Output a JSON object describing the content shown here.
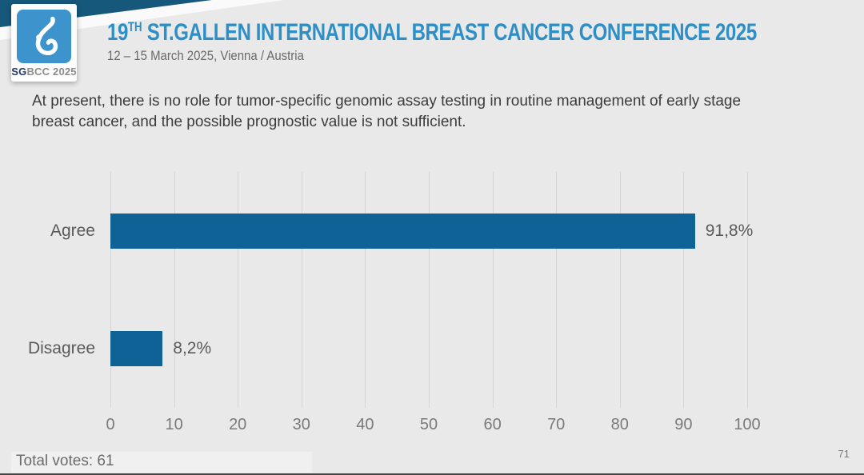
{
  "header": {
    "logo": {
      "icon": "sgbcc-drop-logo",
      "caption_bold": "SG",
      "caption_rest": "BCC 2025"
    },
    "title_number": "19",
    "title_ordinal": "TH",
    "title_rest": "ST.GALLEN INTERNATIONAL BREAST CANCER CONFERENCE 2025",
    "subtitle": "12 – 15 March 2025, Vienna / Austria",
    "title_color": "#2e8ec6",
    "banner_color": "#15587b"
  },
  "question": {
    "text": "At present, there is no role for tumor-specific genomic assay testing in routine management of early stage breast cancer, and the possible prognostic value is not sufficient."
  },
  "chart_data": {
    "type": "bar",
    "orientation": "horizontal",
    "categories": [
      "Agree",
      "Disagree"
    ],
    "values": [
      91.8,
      8.2
    ],
    "value_labels": [
      "91,8%",
      "8,2%"
    ],
    "xlim": [
      0,
      100
    ],
    "xticks": [
      0,
      10,
      20,
      30,
      40,
      50,
      60,
      70,
      80,
      90,
      100
    ],
    "grid": true,
    "legend": false,
    "bar_color": "#0e6296",
    "title": "",
    "xlabel": "",
    "ylabel": ""
  },
  "footer": {
    "total_votes": "Total votes: 61",
    "page_number": "71"
  }
}
